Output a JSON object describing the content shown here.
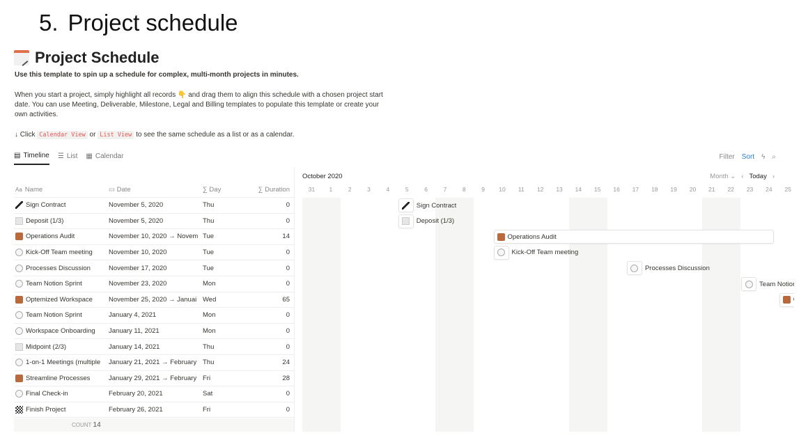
{
  "slide": {
    "number": "5.",
    "title": "Project schedule"
  },
  "page": {
    "title": "Project Schedule",
    "subtitle": "Use this template to spin up a schedule for complex, multi-month projects in minutes.",
    "para1": "When you start a project, simply highlight all records 👇 and drag them to align this schedule with a chosen project start date. You can use Meeting, Deliverable, Milestone, Legal and Billing templates to populate this template or create your own activities.",
    "click_prefix": "↓ Click",
    "code1": "Calendar View",
    "or": "or",
    "code2": "List View",
    "click_suffix": "to see the same schedule as a list or as a calendar."
  },
  "tabs": [
    {
      "label": "Timeline",
      "active": true
    },
    {
      "label": "List"
    },
    {
      "label": "Calendar"
    }
  ],
  "toolbar": {
    "filter": "Filter",
    "sort": "Sort"
  },
  "columns": {
    "name": "Name",
    "date": "Date",
    "day": "Day",
    "duration": "Duration"
  },
  "rows": [
    {
      "icon": "pen",
      "name": "Sign Contract",
      "date": "November 5, 2020",
      "day": "Thu",
      "duration": "0",
      "start": "2020-11-05"
    },
    {
      "icon": "receipt",
      "name": "Deposit (1/3)",
      "date": "November 5, 2020",
      "day": "Thu",
      "duration": "0",
      "start": "2020-11-05"
    },
    {
      "icon": "box",
      "name": "Operations Audit",
      "date": "November 10, 2020 → Novem",
      "day": "Tue",
      "duration": "14",
      "start": "2020-11-10"
    },
    {
      "icon": "chat",
      "name": "Kick-Off Team meeting",
      "date": "November 10, 2020",
      "day": "Tue",
      "duration": "0",
      "start": "2020-11-10"
    },
    {
      "icon": "chat",
      "name": "Processes Discussion",
      "date": "November 17, 2020",
      "day": "Tue",
      "duration": "0",
      "start": "2020-11-17"
    },
    {
      "icon": "chat",
      "name": "Team Notion Sprint",
      "date": "November 23, 2020",
      "day": "Mon",
      "duration": "0",
      "start": "2020-11-23"
    },
    {
      "icon": "box",
      "name": "Optemized Workspace",
      "date": "November 25, 2020 → Januai",
      "day": "Wed",
      "duration": "65",
      "start": "2020-11-25"
    },
    {
      "icon": "chat",
      "name": "Team Notion Sprint",
      "date": "January 4, 2021",
      "day": "Mon",
      "duration": "0",
      "start": "2021-01-04"
    },
    {
      "icon": "chat",
      "name": "Workspace Onboarding",
      "date": "January 11, 2021",
      "day": "Mon",
      "duration": "0",
      "start": "2021-01-11"
    },
    {
      "icon": "receipt",
      "name": "Midpoint (2/3)",
      "date": "January 14, 2021",
      "day": "Thu",
      "duration": "0",
      "start": "2021-01-14"
    },
    {
      "icon": "chat",
      "name": "1-on-1 Meetings (multiple",
      "date": "January 21, 2021 → February",
      "day": "Thu",
      "duration": "24",
      "start": "2021-01-21"
    },
    {
      "icon": "box",
      "name": "Streamline Processes",
      "date": "January 29, 2021 → February",
      "day": "Fri",
      "duration": "28",
      "start": "2021-01-29"
    },
    {
      "icon": "chat",
      "name": "Final Check-in",
      "date": "February 20, 2021",
      "day": "Sat",
      "duration": "0",
      "start": "2021-02-20"
    },
    {
      "icon": "flag",
      "name": "Finish Project",
      "date": "February 26, 2021",
      "day": "Fri",
      "duration": "0",
      "start": "2021-02-26"
    }
  ],
  "count": {
    "label": "COUNT",
    "value": "14"
  },
  "timeline": {
    "month": "October 2020",
    "view": "Month",
    "today": "Today",
    "first_day": "2020-10-31",
    "days": [
      "31",
      "1",
      "2",
      "3",
      "4",
      "5",
      "6",
      "7",
      "8",
      "9",
      "10",
      "11",
      "12",
      "13",
      "14",
      "15",
      "16",
      "17",
      "18",
      "19",
      "20",
      "21",
      "22",
      "23",
      "24",
      "25"
    ]
  }
}
